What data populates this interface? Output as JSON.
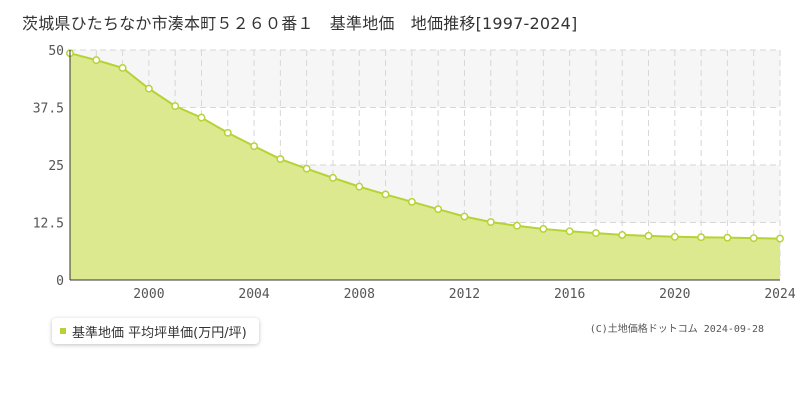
{
  "title": "茨城県ひたちなか市湊本町５２６０番１　基準地価　地価推移[1997-2024]",
  "legend_label": "基準地価 平均坪単価(万円/坪)",
  "credit": "(C)土地価格ドットコム 2024-09-28",
  "colors": {
    "fill": "#dde98e",
    "line": "#b5d335",
    "band": "#f6f6f6",
    "grid": "#d7d7d7"
  },
  "chart_data": {
    "type": "area",
    "title": "茨城県ひたちなか市湊本町５２６０番１　基準地価　地価推移[1997-2024]",
    "xlabel": "",
    "ylabel": "",
    "x": [
      1997,
      1998,
      1999,
      2000,
      2001,
      2002,
      2003,
      2004,
      2005,
      2006,
      2007,
      2008,
      2009,
      2010,
      2011,
      2012,
      2013,
      2014,
      2015,
      2016,
      2017,
      2018,
      2019,
      2020,
      2021,
      2022,
      2023,
      2024
    ],
    "series": [
      {
        "name": "基準地価 平均坪単価(万円/坪)",
        "values": [
          49.3,
          47.8,
          46.1,
          41.6,
          37.8,
          35.3,
          32.0,
          29.1,
          26.3,
          24.2,
          22.2,
          20.3,
          18.6,
          17.0,
          15.4,
          13.8,
          12.6,
          11.8,
          11.1,
          10.6,
          10.2,
          9.8,
          9.6,
          9.4,
          9.3,
          9.2,
          9.1,
          9.0
        ]
      }
    ],
    "xlim": [
      1997,
      2024
    ],
    "ylim": [
      0,
      50
    ],
    "x_ticks": [
      "2000",
      "2004",
      "2008",
      "2012",
      "2016",
      "2020",
      "2024"
    ],
    "y_ticks": [
      "0",
      "12.5",
      "25",
      "37.5",
      "50"
    ],
    "grid": true,
    "legend_position": "bottom-left"
  }
}
